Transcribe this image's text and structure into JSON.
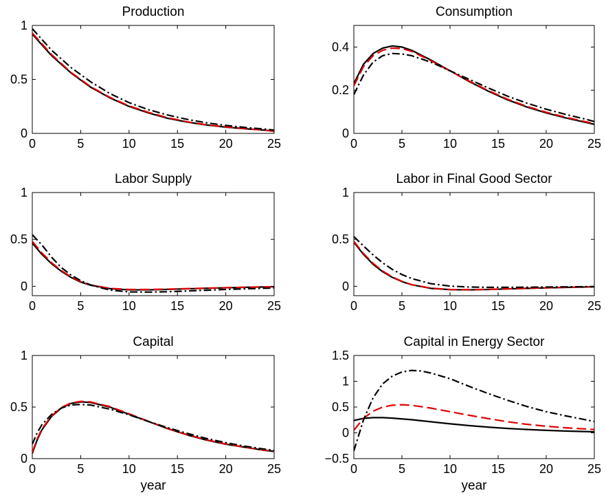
{
  "chart_data": [
    {
      "type": "line",
      "title": "Production",
      "xlabel": "",
      "ylabel": "",
      "xlim": [
        0,
        25
      ],
      "ylim": [
        0,
        1
      ],
      "xticks": [
        0,
        5,
        10,
        15,
        20,
        25
      ],
      "xtick_labels": [
        "0",
        "5",
        "10",
        "15",
        "20",
        "25"
      ],
      "yticks": [
        0,
        0.5,
        1
      ],
      "ytick_labels": [
        "0",
        "0.5",
        "1"
      ],
      "grid": false,
      "series": [
        {
          "color": "#000000",
          "style": "solid",
          "x": [
            0,
            2,
            4,
            6,
            8,
            10,
            12,
            14,
            16,
            18,
            20,
            22,
            24,
            25
          ],
          "y": [
            0.92,
            0.72,
            0.56,
            0.43,
            0.33,
            0.25,
            0.19,
            0.14,
            0.105,
            0.078,
            0.058,
            0.043,
            0.03,
            0.02
          ]
        },
        {
          "color": "#e00000",
          "style": "dashed",
          "x": [
            0,
            2,
            4,
            6,
            8,
            10,
            12,
            14,
            16,
            18,
            20,
            22,
            24,
            25
          ],
          "y": [
            0.93,
            0.73,
            0.565,
            0.435,
            0.335,
            0.255,
            0.195,
            0.145,
            0.108,
            0.08,
            0.06,
            0.044,
            0.031,
            0.02
          ]
        },
        {
          "color": "#000000",
          "style": "dashdot",
          "x": [
            0,
            2,
            4,
            6,
            8,
            10,
            12,
            14,
            16,
            18,
            20,
            22,
            24,
            25
          ],
          "y": [
            0.97,
            0.77,
            0.61,
            0.48,
            0.37,
            0.285,
            0.22,
            0.17,
            0.13,
            0.098,
            0.074,
            0.055,
            0.04,
            0.03
          ]
        }
      ]
    },
    {
      "type": "line",
      "title": "Consumption",
      "xlabel": "",
      "ylabel": "",
      "xlim": [
        0,
        25
      ],
      "ylim": [
        0,
        0.5
      ],
      "xticks": [
        0,
        5,
        10,
        15,
        20,
        25
      ],
      "xtick_labels": [
        "0",
        "5",
        "10",
        "15",
        "20",
        "25"
      ],
      "yticks": [
        0,
        0.2,
        0.4
      ],
      "ytick_labels": [
        "0",
        "0.2",
        "0.4"
      ],
      "grid": false,
      "series": [
        {
          "color": "#000000",
          "style": "solid",
          "x": [
            0,
            1,
            2,
            3,
            4,
            5,
            6,
            8,
            10,
            12,
            14,
            16,
            18,
            20,
            22,
            24,
            25
          ],
          "y": [
            0.23,
            0.32,
            0.37,
            0.395,
            0.405,
            0.4,
            0.385,
            0.34,
            0.29,
            0.24,
            0.195,
            0.155,
            0.122,
            0.095,
            0.072,
            0.052,
            0.042
          ]
        },
        {
          "color": "#e00000",
          "style": "dashed",
          "x": [
            0,
            1,
            2,
            3,
            4,
            5,
            6,
            8,
            10,
            12,
            14,
            16,
            18,
            20,
            22,
            24,
            25
          ],
          "y": [
            0.22,
            0.31,
            0.36,
            0.385,
            0.395,
            0.393,
            0.38,
            0.337,
            0.289,
            0.242,
            0.198,
            0.158,
            0.125,
            0.098,
            0.075,
            0.055,
            0.045
          ]
        },
        {
          "color": "#000000",
          "style": "dashdot",
          "x": [
            0,
            1,
            2,
            3,
            4,
            5,
            6,
            8,
            10,
            12,
            14,
            16,
            18,
            20,
            22,
            24,
            25
          ],
          "y": [
            0.18,
            0.27,
            0.33,
            0.36,
            0.37,
            0.368,
            0.36,
            0.33,
            0.29,
            0.25,
            0.21,
            0.172,
            0.14,
            0.112,
            0.088,
            0.067,
            0.055
          ]
        }
      ]
    },
    {
      "type": "line",
      "title": "Labor Supply",
      "xlabel": "",
      "ylabel": "",
      "xlim": [
        0,
        25
      ],
      "ylim": [
        -0.1,
        1
      ],
      "xticks": [
        0,
        5,
        10,
        15,
        20,
        25
      ],
      "xtick_labels": [
        "0",
        "5",
        "10",
        "15",
        "20",
        "25"
      ],
      "yticks": [
        0,
        0.5,
        1
      ],
      "ytick_labels": [
        "0",
        "0.5",
        "1"
      ],
      "grid": false,
      "series": [
        {
          "color": "#000000",
          "style": "solid",
          "x": [
            0,
            1,
            2,
            3,
            4,
            5,
            6,
            8,
            10,
            12,
            14,
            16,
            18,
            20,
            22,
            25
          ],
          "y": [
            0.46,
            0.34,
            0.24,
            0.16,
            0.095,
            0.045,
            0.012,
            -0.025,
            -0.038,
            -0.038,
            -0.033,
            -0.027,
            -0.021,
            -0.016,
            -0.011,
            -0.005
          ]
        },
        {
          "color": "#e00000",
          "style": "dashed",
          "x": [
            0,
            1,
            2,
            3,
            4,
            5,
            6,
            8,
            10,
            12,
            14,
            16,
            18,
            20,
            22,
            25
          ],
          "y": [
            0.48,
            0.355,
            0.25,
            0.168,
            0.1,
            0.05,
            0.015,
            -0.022,
            -0.034,
            -0.034,
            -0.03,
            -0.025,
            -0.02,
            -0.015,
            -0.01,
            -0.005
          ]
        },
        {
          "color": "#000000",
          "style": "dashdot",
          "x": [
            0,
            1,
            2,
            3,
            4,
            5,
            6,
            8,
            10,
            12,
            14,
            16,
            18,
            20,
            22,
            25
          ],
          "y": [
            0.55,
            0.44,
            0.31,
            0.2,
            0.12,
            0.06,
            0.015,
            -0.04,
            -0.06,
            -0.062,
            -0.058,
            -0.05,
            -0.042,
            -0.034,
            -0.027,
            -0.018
          ]
        }
      ]
    },
    {
      "type": "line",
      "title": "Labor in Final Good Sector",
      "xlabel": "",
      "ylabel": "",
      "xlim": [
        0,
        25
      ],
      "ylim": [
        -0.1,
        1
      ],
      "xticks": [
        0,
        5,
        10,
        15,
        20,
        25
      ],
      "xtick_labels": [
        "0",
        "5",
        "10",
        "15",
        "20",
        "25"
      ],
      "yticks": [
        0,
        0.5,
        1
      ],
      "ytick_labels": [
        "0",
        "0.5",
        "1"
      ],
      "grid": false,
      "series": [
        {
          "color": "#000000",
          "style": "solid",
          "x": [
            0,
            1,
            2,
            3,
            4,
            5,
            6,
            8,
            10,
            12,
            14,
            16,
            18,
            20,
            22,
            25
          ],
          "y": [
            0.47,
            0.34,
            0.235,
            0.155,
            0.095,
            0.05,
            0.017,
            -0.022,
            -0.036,
            -0.038,
            -0.034,
            -0.028,
            -0.022,
            -0.017,
            -0.012,
            -0.006
          ]
        },
        {
          "color": "#e00000",
          "style": "dashed",
          "x": [
            0,
            1,
            2,
            3,
            4,
            5,
            6,
            8,
            10,
            12,
            14,
            16,
            18,
            20,
            22,
            25
          ],
          "y": [
            0.48,
            0.35,
            0.245,
            0.163,
            0.1,
            0.053,
            0.018,
            -0.02,
            -0.034,
            -0.036,
            -0.032,
            -0.027,
            -0.021,
            -0.016,
            -0.011,
            -0.005
          ]
        },
        {
          "color": "#000000",
          "style": "dashdot",
          "x": [
            0,
            1,
            2,
            3,
            4,
            5,
            6,
            8,
            10,
            12,
            14,
            16,
            18,
            20,
            22,
            25
          ],
          "y": [
            0.53,
            0.43,
            0.335,
            0.25,
            0.18,
            0.125,
            0.083,
            0.028,
            0.002,
            -0.008,
            -0.011,
            -0.011,
            -0.01,
            -0.008,
            -0.006,
            -0.003
          ]
        }
      ]
    },
    {
      "type": "line",
      "title": "Capital",
      "xlabel": "year",
      "ylabel": "",
      "xlim": [
        0,
        25
      ],
      "ylim": [
        0,
        1
      ],
      "xticks": [
        0,
        5,
        10,
        15,
        20,
        25
      ],
      "xtick_labels": [
        "0",
        "5",
        "10",
        "15",
        "20",
        "25"
      ],
      "yticks": [
        0,
        0.5,
        1
      ],
      "ytick_labels": [
        "0",
        "0.5",
        "1"
      ],
      "grid": false,
      "series": [
        {
          "color": "#000000",
          "style": "solid",
          "x": [
            0,
            0.5,
            1,
            2,
            3,
            4,
            5,
            6,
            8,
            10,
            12,
            14,
            16,
            18,
            20,
            22,
            24,
            25
          ],
          "y": [
            0.05,
            0.18,
            0.28,
            0.41,
            0.49,
            0.535,
            0.55,
            0.545,
            0.5,
            0.43,
            0.36,
            0.29,
            0.23,
            0.18,
            0.14,
            0.11,
            0.08,
            0.07
          ]
        },
        {
          "color": "#e00000",
          "style": "dashed",
          "x": [
            0,
            0.5,
            1,
            2,
            3,
            4,
            5,
            6,
            8,
            10,
            12,
            14,
            16,
            18,
            20,
            22,
            24,
            25
          ],
          "y": [
            0.06,
            0.19,
            0.29,
            0.415,
            0.495,
            0.54,
            0.555,
            0.55,
            0.505,
            0.435,
            0.362,
            0.292,
            0.232,
            0.182,
            0.142,
            0.11,
            0.082,
            0.072
          ]
        },
        {
          "color": "#000000",
          "style": "dashdot",
          "x": [
            0,
            0.5,
            1,
            2,
            3,
            4,
            5,
            6,
            8,
            10,
            12,
            14,
            16,
            18,
            20,
            22,
            24,
            25
          ],
          "y": [
            0.14,
            0.25,
            0.33,
            0.43,
            0.49,
            0.52,
            0.525,
            0.52,
            0.48,
            0.425,
            0.36,
            0.3,
            0.245,
            0.195,
            0.155,
            0.12,
            0.092,
            0.08
          ]
        }
      ]
    },
    {
      "type": "line",
      "title": "Capital in Energy Sector",
      "xlabel": "year",
      "ylabel": "",
      "xlim": [
        0,
        25
      ],
      "ylim": [
        -0.5,
        1.5
      ],
      "xticks": [
        0,
        5,
        10,
        15,
        20,
        25
      ],
      "xtick_labels": [
        "0",
        "5",
        "10",
        "15",
        "20",
        "25"
      ],
      "yticks": [
        -0.5,
        0,
        0.5,
        1,
        1.5
      ],
      "ytick_labels": [
        "−0.5",
        "0",
        "0.5",
        "1",
        "1.5"
      ],
      "grid": false,
      "series": [
        {
          "color": "#000000",
          "style": "solid",
          "x": [
            0,
            1,
            2,
            3,
            4,
            6,
            8,
            10,
            12,
            14,
            16,
            18,
            20,
            22,
            25
          ],
          "y": [
            0.24,
            0.28,
            0.295,
            0.295,
            0.285,
            0.255,
            0.215,
            0.175,
            0.14,
            0.11,
            0.085,
            0.065,
            0.048,
            0.035,
            0.02
          ]
        },
        {
          "color": "#e00000",
          "style": "dashed",
          "x": [
            0,
            1,
            2,
            3,
            4,
            5,
            6,
            8,
            10,
            12,
            14,
            16,
            18,
            20,
            22,
            25
          ],
          "y": [
            0.05,
            0.28,
            0.42,
            0.5,
            0.535,
            0.545,
            0.535,
            0.48,
            0.41,
            0.34,
            0.275,
            0.215,
            0.165,
            0.128,
            0.098,
            0.065
          ]
        },
        {
          "color": "#000000",
          "style": "dashdot",
          "x": [
            0,
            0.5,
            1,
            2,
            3,
            4,
            5,
            6,
            7,
            8,
            10,
            12,
            14,
            16,
            18,
            20,
            22,
            25
          ],
          "y": [
            -0.35,
            -0.05,
            0.25,
            0.68,
            0.95,
            1.1,
            1.18,
            1.21,
            1.2,
            1.16,
            1.05,
            0.9,
            0.76,
            0.63,
            0.51,
            0.41,
            0.33,
            0.22
          ]
        }
      ]
    }
  ]
}
